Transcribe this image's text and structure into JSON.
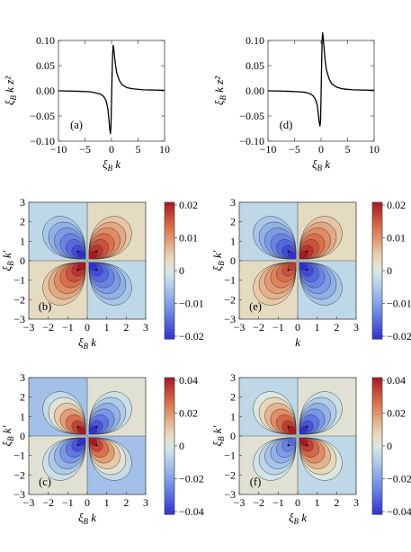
{
  "line_panels": [
    {
      "id": "a",
      "panel_label": "(a)",
      "ylabel": "ξ_B k z²",
      "xlabel": "ξ_B k",
      "xlim": [
        -10,
        10
      ],
      "ylim": [
        -0.1,
        0.1
      ],
      "xticks": [
        -10,
        -5,
        0,
        5,
        10
      ],
      "yticks": [
        -0.1,
        -0.05,
        0.0,
        0.05,
        0.1
      ],
      "ytick_labels": [
        "−0.10",
        "−0.05",
        "0.00",
        "0.05",
        "0.10"
      ],
      "xtick_labels": [
        "−10",
        "−5",
        "0",
        "5",
        "10"
      ]
    },
    {
      "id": "d",
      "panel_label": "(d)",
      "ylabel": "ξ_B k z²",
      "xlabel": "ξ_B k",
      "xlim": [
        -10,
        10
      ],
      "ylim": [
        -0.1,
        0.1
      ],
      "xticks": [
        -10,
        -5,
        0,
        5,
        10
      ],
      "yticks": [
        -0.1,
        -0.05,
        0.0,
        0.05,
        0.1
      ],
      "ytick_labels": [
        "−0.10",
        "−0.05",
        "0.00",
        "0.05",
        "0.10"
      ],
      "xtick_labels": [
        "−10",
        "−5",
        "0",
        "5",
        "10"
      ]
    }
  ],
  "contour_panels": [
    {
      "id": "b",
      "panel_label": "(b)",
      "xlabel": "ξ_B k",
      "ylabel": "ξ_B k′",
      "ticks": [
        -3,
        -2,
        -1,
        0,
        1,
        2,
        3
      ],
      "tick_labels": [
        "−3",
        "−2",
        "−1",
        "0",
        "1",
        "2",
        "3"
      ],
      "colorbar_ticks": [
        "0.02",
        "0.01",
        "0",
        "−0.01",
        "−0.02"
      ]
    },
    {
      "id": "e",
      "panel_label": "(e)",
      "xlabel": "k",
      "ylabel": "ξ_B k′",
      "ticks": [
        -3,
        -2,
        -1,
        0,
        1,
        2,
        3
      ],
      "tick_labels": [
        "−3",
        "−2",
        "−1",
        "0",
        "1",
        "2",
        "3"
      ],
      "colorbar_ticks": [
        "0.02",
        "0.01",
        "0",
        "−0.01",
        "−0.02"
      ]
    },
    {
      "id": "c",
      "panel_label": "(c)",
      "xlabel": "ξ_B k",
      "ylabel": "ξ_B k′",
      "ticks": [
        -3,
        -2,
        -1,
        0,
        1,
        2,
        3
      ],
      "tick_labels": [
        "−3",
        "−2",
        "−1",
        "0",
        "1",
        "2",
        "3"
      ],
      "colorbar_ticks": [
        "0.04",
        "0.02",
        "0",
        "−0.02",
        "−0.04"
      ]
    },
    {
      "id": "f",
      "panel_label": "(f)",
      "xlabel": "ξ_B k",
      "ylabel": "ξ_B k′",
      "ticks": [
        -3,
        -2,
        -1,
        0,
        1,
        2,
        3
      ],
      "tick_labels": [
        "−3",
        "−2",
        "−1",
        "0",
        "1",
        "2",
        "3"
      ],
      "colorbar_ticks": [
        "0.04",
        "0.02",
        "0",
        "−0.02",
        "−0.04"
      ]
    }
  ],
  "chart_data": [
    {
      "type": "line",
      "panel": "(a)",
      "xlabel": "ξ_B k",
      "ylabel": "ξ_B k z²",
      "xlim": [
        -10,
        10
      ],
      "ylim": [
        -0.1,
        0.1
      ],
      "x": [
        -10,
        -6,
        -4,
        -3,
        -2,
        -1.5,
        -1,
        -0.7,
        -0.5,
        -0.35,
        -0.2,
        -0.1,
        0,
        0.1,
        0.2,
        0.3,
        0.45,
        0.6,
        0.8,
        1,
        1.5,
        2,
        3,
        4,
        6,
        10
      ],
      "y": [
        0,
        -0.001,
        -0.002,
        -0.004,
        -0.007,
        -0.011,
        -0.02,
        -0.035,
        -0.055,
        -0.075,
        -0.085,
        -0.07,
        -0.02,
        0.03,
        0.07,
        0.09,
        0.082,
        0.065,
        0.048,
        0.035,
        0.02,
        0.012,
        0.006,
        0.004,
        0.002,
        0.001
      ]
    },
    {
      "type": "line",
      "panel": "(d)",
      "xlabel": "ξ_B k",
      "ylabel": "ξ_B k z²",
      "xlim": [
        -10,
        10
      ],
      "ylim": [
        -0.1,
        0.1
      ],
      "x": [
        -10,
        -6,
        -4,
        -3,
        -2,
        -1.5,
        -1,
        -0.7,
        -0.5,
        -0.35,
        -0.2,
        -0.1,
        0,
        0.1,
        0.2,
        0.3,
        0.45,
        0.6,
        0.8,
        1,
        1.5,
        2,
        3,
        4,
        6,
        10
      ],
      "y": [
        0,
        -0.001,
        -0.002,
        -0.003,
        -0.006,
        -0.01,
        -0.018,
        -0.03,
        -0.048,
        -0.062,
        -0.07,
        -0.06,
        -0.01,
        0.05,
        0.1,
        0.115,
        0.1,
        0.08,
        0.058,
        0.042,
        0.024,
        0.014,
        0.007,
        0.004,
        0.002,
        0.001
      ]
    },
    {
      "type": "heatmap",
      "panel": "(b)",
      "xlabel": "ξ_B k",
      "ylabel": "ξ_B k′",
      "xlim": [
        -3,
        3
      ],
      "ylim": [
        -3,
        3
      ],
      "zlim": [
        -0.02,
        0.02
      ],
      "lobes": [
        {
          "x": 0.5,
          "y": 0.5,
          "value": 0.02
        },
        {
          "x": -0.5,
          "y": -0.5,
          "value": 0.02
        },
        {
          "x": -0.5,
          "y": 0.5,
          "value": -0.02
        },
        {
          "x": 0.5,
          "y": -0.5,
          "value": -0.02
        }
      ],
      "background": {
        "quadrants_pos": 0.003,
        "quadrants_neg": -0.003
      }
    },
    {
      "type": "heatmap",
      "panel": "(e)",
      "xlabel": "k",
      "ylabel": "ξ_B k′",
      "xlim": [
        -3,
        3
      ],
      "ylim": [
        -3,
        3
      ],
      "zlim": [
        -0.02,
        0.02
      ],
      "lobes": [
        {
          "x": 0.5,
          "y": 0.5,
          "value": 0.02
        },
        {
          "x": -0.5,
          "y": -0.5,
          "value": 0.017
        },
        {
          "x": -0.5,
          "y": 0.5,
          "value": -0.02
        },
        {
          "x": 0.5,
          "y": -0.5,
          "value": -0.02
        }
      ],
      "background": {
        "quadrants_pos": 0.003,
        "quadrants_neg": -0.003
      }
    },
    {
      "type": "heatmap",
      "panel": "(c)",
      "xlabel": "ξ_B k",
      "ylabel": "ξ_B k′",
      "xlim": [
        -3,
        3
      ],
      "ylim": [
        -3,
        3
      ],
      "zlim": [
        -0.04,
        0.04
      ],
      "lobes": [
        {
          "x": -0.5,
          "y": 0.5,
          "value": 0.04
        },
        {
          "x": 0.5,
          "y": -0.5,
          "value": 0.04
        },
        {
          "x": 0.5,
          "y": 0.5,
          "value": -0.04
        },
        {
          "x": -0.5,
          "y": -0.5,
          "value": -0.04
        }
      ],
      "background": {
        "quadrants_pos": 0.003,
        "quadrants_neg": -0.012
      }
    },
    {
      "type": "heatmap",
      "panel": "(f)",
      "xlabel": "ξ_B k",
      "ylabel": "ξ_B k′",
      "xlim": [
        -3,
        3
      ],
      "ylim": [
        -3,
        3
      ],
      "zlim": [
        -0.04,
        0.04
      ],
      "lobes": [
        {
          "x": -0.5,
          "y": 0.5,
          "value": 0.04
        },
        {
          "x": 0.5,
          "y": -0.5,
          "value": 0.04
        },
        {
          "x": 0.5,
          "y": 0.5,
          "value": -0.04
        },
        {
          "x": -0.5,
          "y": -0.5,
          "value": -0.03
        }
      ],
      "background": {
        "quadrants_pos": 0.003,
        "quadrants_neg": -0.006
      }
    }
  ]
}
